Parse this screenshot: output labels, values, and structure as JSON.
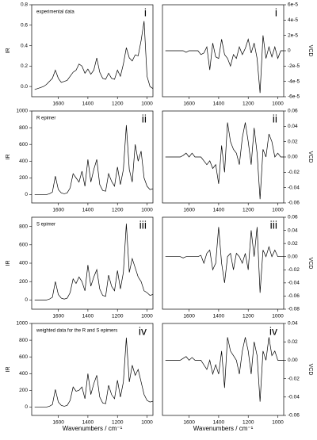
{
  "chart_data": [
    {
      "type": "line",
      "annotation": "experimental data",
      "panel_label": "i",
      "ylabel": "IR",
      "y_axis_side": "left",
      "color": "#000000",
      "x": [
        1760,
        1740,
        1720,
        1700,
        1680,
        1660,
        1640,
        1620,
        1600,
        1580,
        1560,
        1540,
        1520,
        1500,
        1480,
        1460,
        1440,
        1420,
        1400,
        1380,
        1360,
        1340,
        1320,
        1300,
        1280,
        1260,
        1240,
        1220,
        1200,
        1180,
        1160,
        1140,
        1120,
        1100,
        1080,
        1060,
        1040,
        1020,
        1000,
        980,
        960
      ],
      "values": [
        -0.03,
        -0.02,
        -0.01,
        0.0,
        0.02,
        0.05,
        0.08,
        0.16,
        0.08,
        0.04,
        0.05,
        0.06,
        0.1,
        0.14,
        0.16,
        0.22,
        0.2,
        0.13,
        0.17,
        0.12,
        0.16,
        0.28,
        0.14,
        0.08,
        0.07,
        0.13,
        0.08,
        0.07,
        0.16,
        0.1,
        0.22,
        0.38,
        0.28,
        0.25,
        0.31,
        0.3,
        0.45,
        0.64,
        0.1,
        0.0,
        -0.02
      ],
      "xlim": [
        1780,
        960
      ],
      "xticks": [
        1600,
        1400,
        1200,
        1000
      ],
      "ylim": [
        -0.1,
        0.8
      ],
      "yticks": [
        {
          "value": 0,
          "label": "0.0"
        },
        0.2,
        0.4,
        0.6,
        0.8
      ]
    },
    {
      "type": "line",
      "panel_label": "i",
      "ylabel": "VCD",
      "y_axis_side": "right",
      "color": "#000000",
      "x": [
        1760,
        1740,
        1720,
        1700,
        1680,
        1660,
        1640,
        1620,
        1600,
        1580,
        1560,
        1540,
        1520,
        1500,
        1480,
        1460,
        1440,
        1420,
        1400,
        1380,
        1360,
        1340,
        1320,
        1300,
        1280,
        1260,
        1240,
        1220,
        1200,
        1180,
        1160,
        1140,
        1120,
        1100,
        1080,
        1060,
        1040,
        1020,
        1000,
        980,
        960
      ],
      "values": [
        0,
        0,
        0,
        0,
        0,
        0,
        0,
        -2e-06,
        0,
        0,
        0,
        0,
        -5e-06,
        -3e-06,
        5e-06,
        -2.5e-05,
        1e-05,
        -8e-06,
        -1e-05,
        1.5e-05,
        -5e-06,
        -1e-05,
        -2e-05,
        -5e-06,
        -1e-05,
        5e-06,
        -5e-06,
        3e-06,
        1.5e-05,
        -3e-06,
        1e-05,
        -1e-05,
        -5.5e-05,
        2e-05,
        -1e-05,
        5e-06,
        -8e-06,
        5e-06,
        -1e-05,
        0,
        0
      ],
      "xlim": [
        1780,
        960
      ],
      "xticks": [
        1600,
        1400,
        1200,
        1000
      ],
      "ylim": [
        -6e-05,
        6e-05
      ],
      "yticks": [
        {
          "value": 6e-05,
          "label": "6e-5"
        },
        {
          "value": 4e-05,
          "label": "4e-5"
        },
        {
          "value": 2e-05,
          "label": "2e-5"
        },
        0,
        {
          "value": -2e-05,
          "label": "-2e-5"
        },
        {
          "value": -4e-05,
          "label": "-4e-5"
        },
        {
          "value": -6e-05,
          "label": "-6e-5"
        }
      ]
    },
    {
      "type": "line",
      "annotation": "R epimer",
      "panel_label": "ii",
      "ylabel": "IR",
      "y_axis_side": "left",
      "color": "#000000",
      "x": [
        1760,
        1740,
        1720,
        1700,
        1680,
        1660,
        1640,
        1620,
        1600,
        1580,
        1560,
        1540,
        1520,
        1500,
        1480,
        1460,
        1440,
        1420,
        1400,
        1380,
        1360,
        1340,
        1320,
        1300,
        1280,
        1260,
        1240,
        1220,
        1200,
        1180,
        1160,
        1140,
        1120,
        1100,
        1080,
        1060,
        1040,
        1020,
        1000,
        980,
        960
      ],
      "values": [
        0,
        0,
        0,
        0,
        0,
        10,
        30,
        220,
        60,
        20,
        10,
        20,
        80,
        250,
        200,
        150,
        280,
        100,
        420,
        150,
        300,
        420,
        120,
        50,
        40,
        250,
        160,
        100,
        330,
        120,
        300,
        830,
        300,
        150,
        600,
        400,
        520,
        200,
        100,
        60,
        70
      ],
      "xlim": [
        1780,
        960
      ],
      "xticks": [
        1600,
        1400,
        1200,
        1000
      ],
      "ylim": [
        -100,
        1000
      ],
      "yticks": [
        0,
        200,
        400,
        600,
        800,
        1000
      ]
    },
    {
      "type": "line",
      "panel_label": "ii",
      "ylabel": "VCD",
      "y_axis_side": "right",
      "color": "#000000",
      "x": [
        1760,
        1740,
        1720,
        1700,
        1680,
        1660,
        1640,
        1620,
        1600,
        1580,
        1560,
        1540,
        1520,
        1500,
        1480,
        1460,
        1440,
        1420,
        1400,
        1380,
        1360,
        1340,
        1320,
        1300,
        1280,
        1260,
        1240,
        1220,
        1200,
        1180,
        1160,
        1140,
        1120,
        1100,
        1080,
        1060,
        1040,
        1020,
        1000,
        980,
        960
      ],
      "values": [
        0,
        0,
        0,
        0,
        0,
        0,
        0.002,
        0.005,
        0,
        0.005,
        0,
        0,
        0,
        -0.005,
        -0.01,
        -0.005,
        -0.015,
        -0.01,
        -0.035,
        0.015,
        -0.02,
        0.045,
        0.02,
        0.01,
        0.005,
        -0.01,
        0.025,
        0.045,
        0.02,
        -0.01,
        0.038,
        0.005,
        -0.055,
        0.01,
        0,
        0.03,
        0.02,
        0,
        0.005,
        0,
        0
      ],
      "xlim": [
        1780,
        960
      ],
      "xticks": [
        1600,
        1400,
        1200,
        1000
      ],
      "ylim": [
        -0.06,
        0.06
      ],
      "yticks": [
        0.06,
        0.04,
        0.02,
        {
          "value": 0,
          "label": "0.00"
        },
        -0.02,
        -0.04,
        -0.06
      ]
    },
    {
      "type": "line",
      "annotation": "S epimer",
      "panel_label": "iii",
      "ylabel": "IR",
      "y_axis_side": "left",
      "color": "#000000",
      "x": [
        1760,
        1740,
        1720,
        1700,
        1680,
        1660,
        1640,
        1620,
        1600,
        1580,
        1560,
        1540,
        1520,
        1500,
        1480,
        1460,
        1440,
        1420,
        1400,
        1380,
        1360,
        1340,
        1320,
        1300,
        1280,
        1260,
        1240,
        1220,
        1200,
        1180,
        1160,
        1140,
        1120,
        1100,
        1080,
        1060,
        1040,
        1020,
        1000,
        980,
        960
      ],
      "values": [
        0,
        0,
        0,
        0,
        0,
        10,
        30,
        200,
        60,
        20,
        10,
        20,
        80,
        230,
        180,
        250,
        200,
        100,
        380,
        150,
        250,
        330,
        120,
        50,
        40,
        270,
        150,
        100,
        320,
        120,
        300,
        830,
        300,
        450,
        350,
        250,
        200,
        100,
        80,
        50,
        60
      ],
      "xlim": [
        1780,
        960
      ],
      "xticks": [
        1600,
        1400,
        1200,
        1000
      ],
      "ylim": [
        -100,
        900
      ],
      "yticks": [
        0,
        200,
        400,
        600,
        800
      ]
    },
    {
      "type": "line",
      "panel_label": "iii",
      "ylabel": "VCD",
      "y_axis_side": "right",
      "color": "#000000",
      "x": [
        1760,
        1740,
        1720,
        1700,
        1680,
        1660,
        1640,
        1620,
        1600,
        1580,
        1560,
        1540,
        1520,
        1500,
        1480,
        1460,
        1440,
        1420,
        1400,
        1380,
        1360,
        1340,
        1320,
        1300,
        1280,
        1260,
        1240,
        1220,
        1200,
        1180,
        1160,
        1140,
        1120,
        1100,
        1080,
        1060,
        1040,
        1020,
        1000,
        980,
        960
      ],
      "values": [
        0,
        0,
        0,
        0,
        0,
        0,
        -0.002,
        0,
        0,
        0,
        0,
        0,
        0.002,
        -0.01,
        0.005,
        0.01,
        -0.02,
        -0.01,
        0.045,
        -0.01,
        -0.04,
        0,
        0.005,
        -0.02,
        0.005,
        0,
        -0.01,
        0.005,
        -0.02,
        0.04,
        0,
        0.045,
        -0.055,
        0.01,
        0,
        0.015,
        0,
        0.01,
        0,
        0,
        0
      ],
      "xlim": [
        1780,
        960
      ],
      "xticks": [
        1600,
        1400,
        1200,
        1000
      ],
      "ylim": [
        -0.08,
        0.06
      ],
      "yticks": [
        0.06,
        0.04,
        0.02,
        {
          "value": 0,
          "label": "0.00"
        },
        -0.02,
        -0.04,
        -0.06,
        -0.08
      ]
    },
    {
      "type": "line",
      "annotation": "weighted data for the R and S epimers",
      "panel_label": "iv",
      "ylabel": "IR",
      "y_axis_side": "left",
      "color": "#000000",
      "xlabel": "Wavenumbers / cm⁻¹",
      "x": [
        1760,
        1740,
        1720,
        1700,
        1680,
        1660,
        1640,
        1620,
        1600,
        1580,
        1560,
        1540,
        1520,
        1500,
        1480,
        1460,
        1440,
        1420,
        1400,
        1380,
        1360,
        1340,
        1320,
        1300,
        1280,
        1260,
        1240,
        1220,
        1200,
        1180,
        1160,
        1140,
        1120,
        1100,
        1080,
        1060,
        1040,
        1020,
        1000,
        980,
        960
      ],
      "values": [
        0,
        0,
        0,
        0,
        0,
        10,
        30,
        210,
        60,
        20,
        10,
        20,
        80,
        240,
        190,
        200,
        240,
        100,
        400,
        150,
        280,
        380,
        120,
        50,
        40,
        260,
        150,
        100,
        320,
        120,
        300,
        830,
        300,
        500,
        380,
        450,
        300,
        150,
        80,
        60,
        70
      ],
      "xlim": [
        1780,
        960
      ],
      "xticks": [
        1600,
        1400,
        1200,
        1000
      ],
      "ylim": [
        -100,
        1000
      ],
      "yticks": [
        0,
        200,
        400,
        600,
        800,
        1000
      ]
    },
    {
      "type": "line",
      "panel_label": "iv",
      "ylabel": "VCD",
      "y_axis_side": "right",
      "color": "#000000",
      "xlabel": "Wavenumbers / cm⁻¹",
      "x": [
        1760,
        1740,
        1720,
        1700,
        1680,
        1660,
        1640,
        1620,
        1600,
        1580,
        1560,
        1540,
        1520,
        1500,
        1480,
        1460,
        1440,
        1420,
        1400,
        1380,
        1360,
        1340,
        1320,
        1300,
        1280,
        1260,
        1240,
        1220,
        1200,
        1180,
        1160,
        1140,
        1120,
        1100,
        1080,
        1060,
        1040,
        1020,
        1000,
        980,
        960
      ],
      "values": [
        0,
        0,
        0,
        0,
        0,
        0,
        0.002,
        0.004,
        0,
        0.003,
        0,
        0,
        0,
        -0.005,
        -0.01,
        0,
        -0.015,
        -0.005,
        -0.015,
        0.01,
        -0.03,
        0.025,
        0.01,
        0.005,
        0,
        -0.015,
        0.01,
        0.025,
        0.01,
        -0.015,
        0.02,
        0.005,
        -0.045,
        0.01,
        0,
        0.025,
        0.005,
        0.01,
        0,
        0,
        0
      ],
      "xlim": [
        1780,
        960
      ],
      "xticks": [
        1600,
        1400,
        1200,
        1000
      ],
      "ylim": [
        -0.06,
        0.04
      ],
      "yticks": [
        0.04,
        0.02,
        {
          "value": 0,
          "label": "0.00"
        },
        -0.02,
        -0.04,
        -0.06
      ]
    }
  ]
}
